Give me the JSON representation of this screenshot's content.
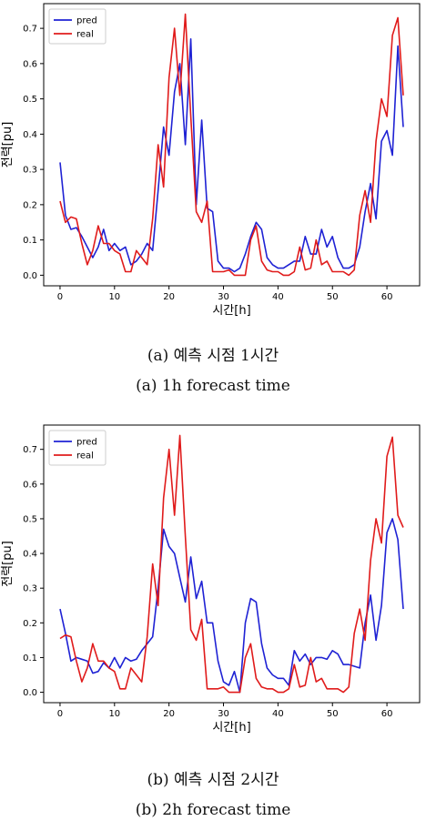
{
  "colors": {
    "pred": "#1f22d4",
    "real": "#e01b1b"
  },
  "chart_data": [
    {
      "type": "line",
      "xlabel": "시간[h]",
      "ylabel": "전력[pu]",
      "xlim": [
        -3,
        66
      ],
      "ylim": [
        -0.03,
        0.77
      ],
      "xticks": [
        0,
        10,
        20,
        30,
        40,
        50,
        60
      ],
      "yticks": [
        0.0,
        0.1,
        0.2,
        0.3,
        0.4,
        0.5,
        0.6,
        0.7
      ],
      "legend_position": "top-left",
      "grid": false,
      "series": [
        {
          "name": "pred",
          "color": "#1f22d4",
          "x": [
            0,
            1,
            2,
            3,
            4,
            5,
            6,
            7,
            8,
            9,
            10,
            11,
            12,
            13,
            14,
            15,
            16,
            17,
            18,
            19,
            20,
            21,
            22,
            23,
            24,
            25,
            26,
            27,
            28,
            29,
            30,
            31,
            32,
            33,
            34,
            35,
            36,
            37,
            38,
            39,
            40,
            41,
            42,
            43,
            44,
            45,
            46,
            47,
            48,
            49,
            50,
            51,
            52,
            53,
            54,
            55,
            56,
            57,
            58,
            59,
            60,
            61,
            62,
            63
          ],
          "values": [
            0.32,
            0.17,
            0.13,
            0.135,
            0.11,
            0.08,
            0.05,
            0.08,
            0.13,
            0.07,
            0.09,
            0.07,
            0.08,
            0.03,
            0.04,
            0.06,
            0.09,
            0.07,
            0.24,
            0.42,
            0.34,
            0.52,
            0.6,
            0.37,
            0.67,
            0.2,
            0.44,
            0.19,
            0.18,
            0.04,
            0.02,
            0.02,
            0.01,
            0.02,
            0.06,
            0.11,
            0.15,
            0.13,
            0.05,
            0.03,
            0.02,
            0.02,
            0.03,
            0.04,
            0.04,
            0.11,
            0.06,
            0.06,
            0.13,
            0.08,
            0.11,
            0.05,
            0.02,
            0.02,
            0.03,
            0.08,
            0.18,
            0.26,
            0.16,
            0.38,
            0.41,
            0.34,
            0.65,
            0.42
          ]
        },
        {
          "name": "real",
          "color": "#e01b1b",
          "x": [
            0,
            1,
            2,
            3,
            4,
            5,
            6,
            7,
            8,
            9,
            10,
            11,
            12,
            13,
            14,
            15,
            16,
            17,
            18,
            19,
            20,
            21,
            22,
            23,
            24,
            25,
            26,
            27,
            28,
            29,
            30,
            31,
            32,
            33,
            34,
            35,
            36,
            37,
            38,
            39,
            40,
            41,
            42,
            43,
            44,
            45,
            46,
            47,
            48,
            49,
            50,
            51,
            52,
            53,
            54,
            55,
            56,
            57,
            58,
            59,
            60,
            61,
            62,
            63
          ],
          "values": [
            0.21,
            0.15,
            0.165,
            0.16,
            0.09,
            0.03,
            0.07,
            0.14,
            0.09,
            0.09,
            0.07,
            0.06,
            0.01,
            0.01,
            0.07,
            0.05,
            0.03,
            0.16,
            0.37,
            0.25,
            0.56,
            0.7,
            0.51,
            0.74,
            0.45,
            0.18,
            0.15,
            0.21,
            0.01,
            0.01,
            0.01,
            0.015,
            0.0,
            0.0,
            0.0,
            0.1,
            0.14,
            0.04,
            0.015,
            0.01,
            0.01,
            0.0,
            0.0,
            0.01,
            0.08,
            0.015,
            0.02,
            0.1,
            0.03,
            0.04,
            0.01,
            0.01,
            0.01,
            0.0,
            0.015,
            0.17,
            0.24,
            0.15,
            0.38,
            0.5,
            0.45,
            0.68,
            0.73,
            0.51
          ]
        }
      ]
    },
    {
      "type": "line",
      "xlabel": "시간[h]",
      "ylabel": "전력[pu]",
      "xlim": [
        -3,
        66
      ],
      "ylim": [
        -0.03,
        0.77
      ],
      "xticks": [
        0,
        10,
        20,
        30,
        40,
        50,
        60
      ],
      "yticks": [
        0.0,
        0.1,
        0.2,
        0.3,
        0.4,
        0.5,
        0.6,
        0.7
      ],
      "legend_position": "top-left",
      "grid": false,
      "series": [
        {
          "name": "pred",
          "color": "#1f22d4",
          "x": [
            0,
            1,
            2,
            3,
            4,
            5,
            6,
            7,
            8,
            9,
            10,
            11,
            12,
            13,
            14,
            15,
            16,
            17,
            18,
            19,
            20,
            21,
            22,
            23,
            24,
            25,
            26,
            27,
            28,
            29,
            30,
            31,
            32,
            33,
            34,
            35,
            36,
            37,
            38,
            39,
            40,
            41,
            42,
            43,
            44,
            45,
            46,
            47,
            48,
            49,
            50,
            51,
            52,
            53,
            54,
            55,
            56,
            57,
            58,
            59,
            60,
            61,
            62,
            63
          ],
          "values": [
            0.24,
            0.17,
            0.09,
            0.1,
            0.095,
            0.09,
            0.055,
            0.06,
            0.085,
            0.07,
            0.1,
            0.07,
            0.1,
            0.09,
            0.095,
            0.12,
            0.14,
            0.16,
            0.3,
            0.47,
            0.42,
            0.4,
            0.33,
            0.26,
            0.39,
            0.27,
            0.32,
            0.2,
            0.2,
            0.09,
            0.03,
            0.02,
            0.06,
            0.0,
            0.2,
            0.27,
            0.26,
            0.14,
            0.07,
            0.05,
            0.04,
            0.04,
            0.02,
            0.12,
            0.09,
            0.11,
            0.08,
            0.1,
            0.1,
            0.095,
            0.12,
            0.11,
            0.08,
            0.08,
            0.075,
            0.07,
            0.2,
            0.28,
            0.15,
            0.25,
            0.46,
            0.5,
            0.44,
            0.24
          ]
        },
        {
          "name": "real",
          "color": "#e01b1b",
          "x": [
            0,
            1,
            2,
            3,
            4,
            5,
            6,
            7,
            8,
            9,
            10,
            11,
            12,
            13,
            14,
            15,
            16,
            17,
            18,
            19,
            20,
            21,
            22,
            23,
            24,
            25,
            26,
            27,
            28,
            29,
            30,
            31,
            32,
            33,
            34,
            35,
            36,
            37,
            38,
            39,
            40,
            41,
            42,
            43,
            44,
            45,
            46,
            47,
            48,
            49,
            50,
            51,
            52,
            53,
            54,
            55,
            56,
            57,
            58,
            59,
            60,
            61,
            62,
            63
          ],
          "values": [
            0.155,
            0.165,
            0.16,
            0.09,
            0.03,
            0.07,
            0.14,
            0.09,
            0.09,
            0.07,
            0.06,
            0.01,
            0.01,
            0.07,
            0.05,
            0.03,
            0.16,
            0.37,
            0.25,
            0.56,
            0.7,
            0.51,
            0.74,
            0.45,
            0.18,
            0.15,
            0.21,
            0.01,
            0.01,
            0.01,
            0.015,
            0.0,
            0.0,
            0.0,
            0.1,
            0.14,
            0.04,
            0.015,
            0.01,
            0.01,
            0.0,
            0.0,
            0.01,
            0.08,
            0.015,
            0.02,
            0.1,
            0.03,
            0.04,
            0.01,
            0.01,
            0.01,
            0.0,
            0.015,
            0.17,
            0.24,
            0.15,
            0.38,
            0.5,
            0.43,
            0.68,
            0.735,
            0.51,
            0.475
          ]
        }
      ]
    }
  ],
  "captions": {
    "a_korean": "(a)  예측  시점  1시간",
    "a_english": "(a)  1h  forecast  time",
    "b_korean": "(b)  예측  시점  2시간",
    "b_english": "(b)  2h  forecast  time"
  }
}
